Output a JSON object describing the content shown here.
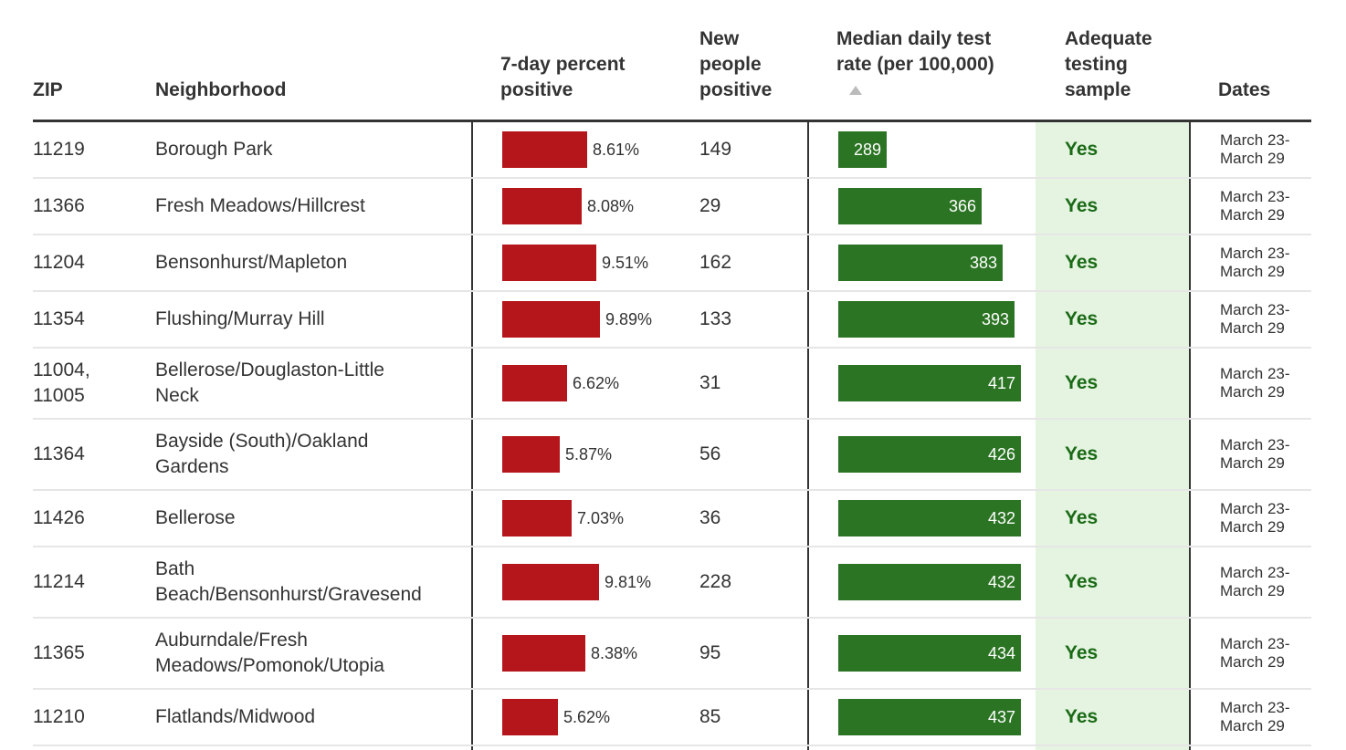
{
  "columns": {
    "zip": "ZIP",
    "neighborhood": "Neighborhood",
    "percent_positive": [
      "7-day percent",
      "positive"
    ],
    "new_positive": [
      "New",
      "people",
      "positive"
    ],
    "test_rate": [
      "Median daily test",
      "rate (per 100,000)"
    ],
    "adequate": [
      "Adequate",
      "testing",
      "sample"
    ],
    "dates": "Dates"
  },
  "colors": {
    "percent_bar": "#b5161b",
    "rate_bar": "#2b7423",
    "adequate_bg": "#e5f4e1",
    "adequate_text": "#1a6a16"
  },
  "chart_data": {
    "type": "table",
    "sorted_by": "test_rate",
    "sort_direction": "ascending",
    "rows": [
      {
        "zip": [
          "11219"
        ],
        "neighborhood": [
          "Borough Park"
        ],
        "percent_positive": 8.61,
        "percent_label": "8.61%",
        "new_positive": "149",
        "test_rate": 289,
        "rate_label": "289",
        "adequate": "Yes",
        "dates": [
          "March 23-",
          "March 29"
        ]
      },
      {
        "zip": [
          "11366"
        ],
        "neighborhood": [
          "Fresh Meadows/Hillcrest"
        ],
        "percent_positive": 8.08,
        "percent_label": "8.08%",
        "new_positive": "29",
        "test_rate": 366,
        "rate_label": "366",
        "adequate": "Yes",
        "dates": [
          "March 23-",
          "March 29"
        ]
      },
      {
        "zip": [
          "11204"
        ],
        "neighborhood": [
          "Bensonhurst/Mapleton"
        ],
        "percent_positive": 9.51,
        "percent_label": "9.51%",
        "new_positive": "162",
        "test_rate": 383,
        "rate_label": "383",
        "adequate": "Yes",
        "dates": [
          "March 23-",
          "March 29"
        ]
      },
      {
        "zip": [
          "11354"
        ],
        "neighborhood": [
          "Flushing/Murray Hill"
        ],
        "percent_positive": 9.89,
        "percent_label": "9.89%",
        "new_positive": "133",
        "test_rate": 393,
        "rate_label": "393",
        "adequate": "Yes",
        "dates": [
          "March 23-",
          "March 29"
        ]
      },
      {
        "zip": [
          "11004,",
          "11005"
        ],
        "neighborhood": [
          "Bellerose/Douglaston-Little",
          "Neck"
        ],
        "percent_positive": 6.62,
        "percent_label": "6.62%",
        "new_positive": "31",
        "test_rate": 417,
        "rate_label": "417",
        "adequate": "Yes",
        "dates": [
          "March 23-",
          "March 29"
        ]
      },
      {
        "zip": [
          "11364"
        ],
        "neighborhood": [
          "Bayside (South)/Oakland",
          "Gardens"
        ],
        "percent_positive": 5.87,
        "percent_label": "5.87%",
        "new_positive": "56",
        "test_rate": 426,
        "rate_label": "426",
        "adequate": "Yes",
        "dates": [
          "March 23-",
          "March 29"
        ]
      },
      {
        "zip": [
          "11426"
        ],
        "neighborhood": [
          "Bellerose"
        ],
        "percent_positive": 7.03,
        "percent_label": "7.03%",
        "new_positive": "36",
        "test_rate": 432,
        "rate_label": "432",
        "adequate": "Yes",
        "dates": [
          "March 23-",
          "March 29"
        ]
      },
      {
        "zip": [
          "11214"
        ],
        "neighborhood": [
          "Bath",
          "Beach/Bensonhurst/Gravesend"
        ],
        "percent_positive": 9.81,
        "percent_label": "9.81%",
        "new_positive": "228",
        "test_rate": 432,
        "rate_label": "432",
        "adequate": "Yes",
        "dates": [
          "March 23-",
          "March 29"
        ]
      },
      {
        "zip": [
          "11365"
        ],
        "neighborhood": [
          "Auburndale/Fresh",
          "Meadows/Pomonok/Utopia"
        ],
        "percent_positive": 8.38,
        "percent_label": "8.38%",
        "new_positive": "95",
        "test_rate": 434,
        "rate_label": "434",
        "adequate": "Yes",
        "dates": [
          "March 23-",
          "March 29"
        ]
      },
      {
        "zip": [
          "11210"
        ],
        "neighborhood": [
          "Flatlands/Midwood"
        ],
        "percent_positive": 5.62,
        "percent_label": "5.62%",
        "new_positive": "85",
        "test_rate": 437,
        "rate_label": "437",
        "adequate": "Yes",
        "dates": [
          "March 23-",
          "March 29"
        ]
      }
    ]
  }
}
